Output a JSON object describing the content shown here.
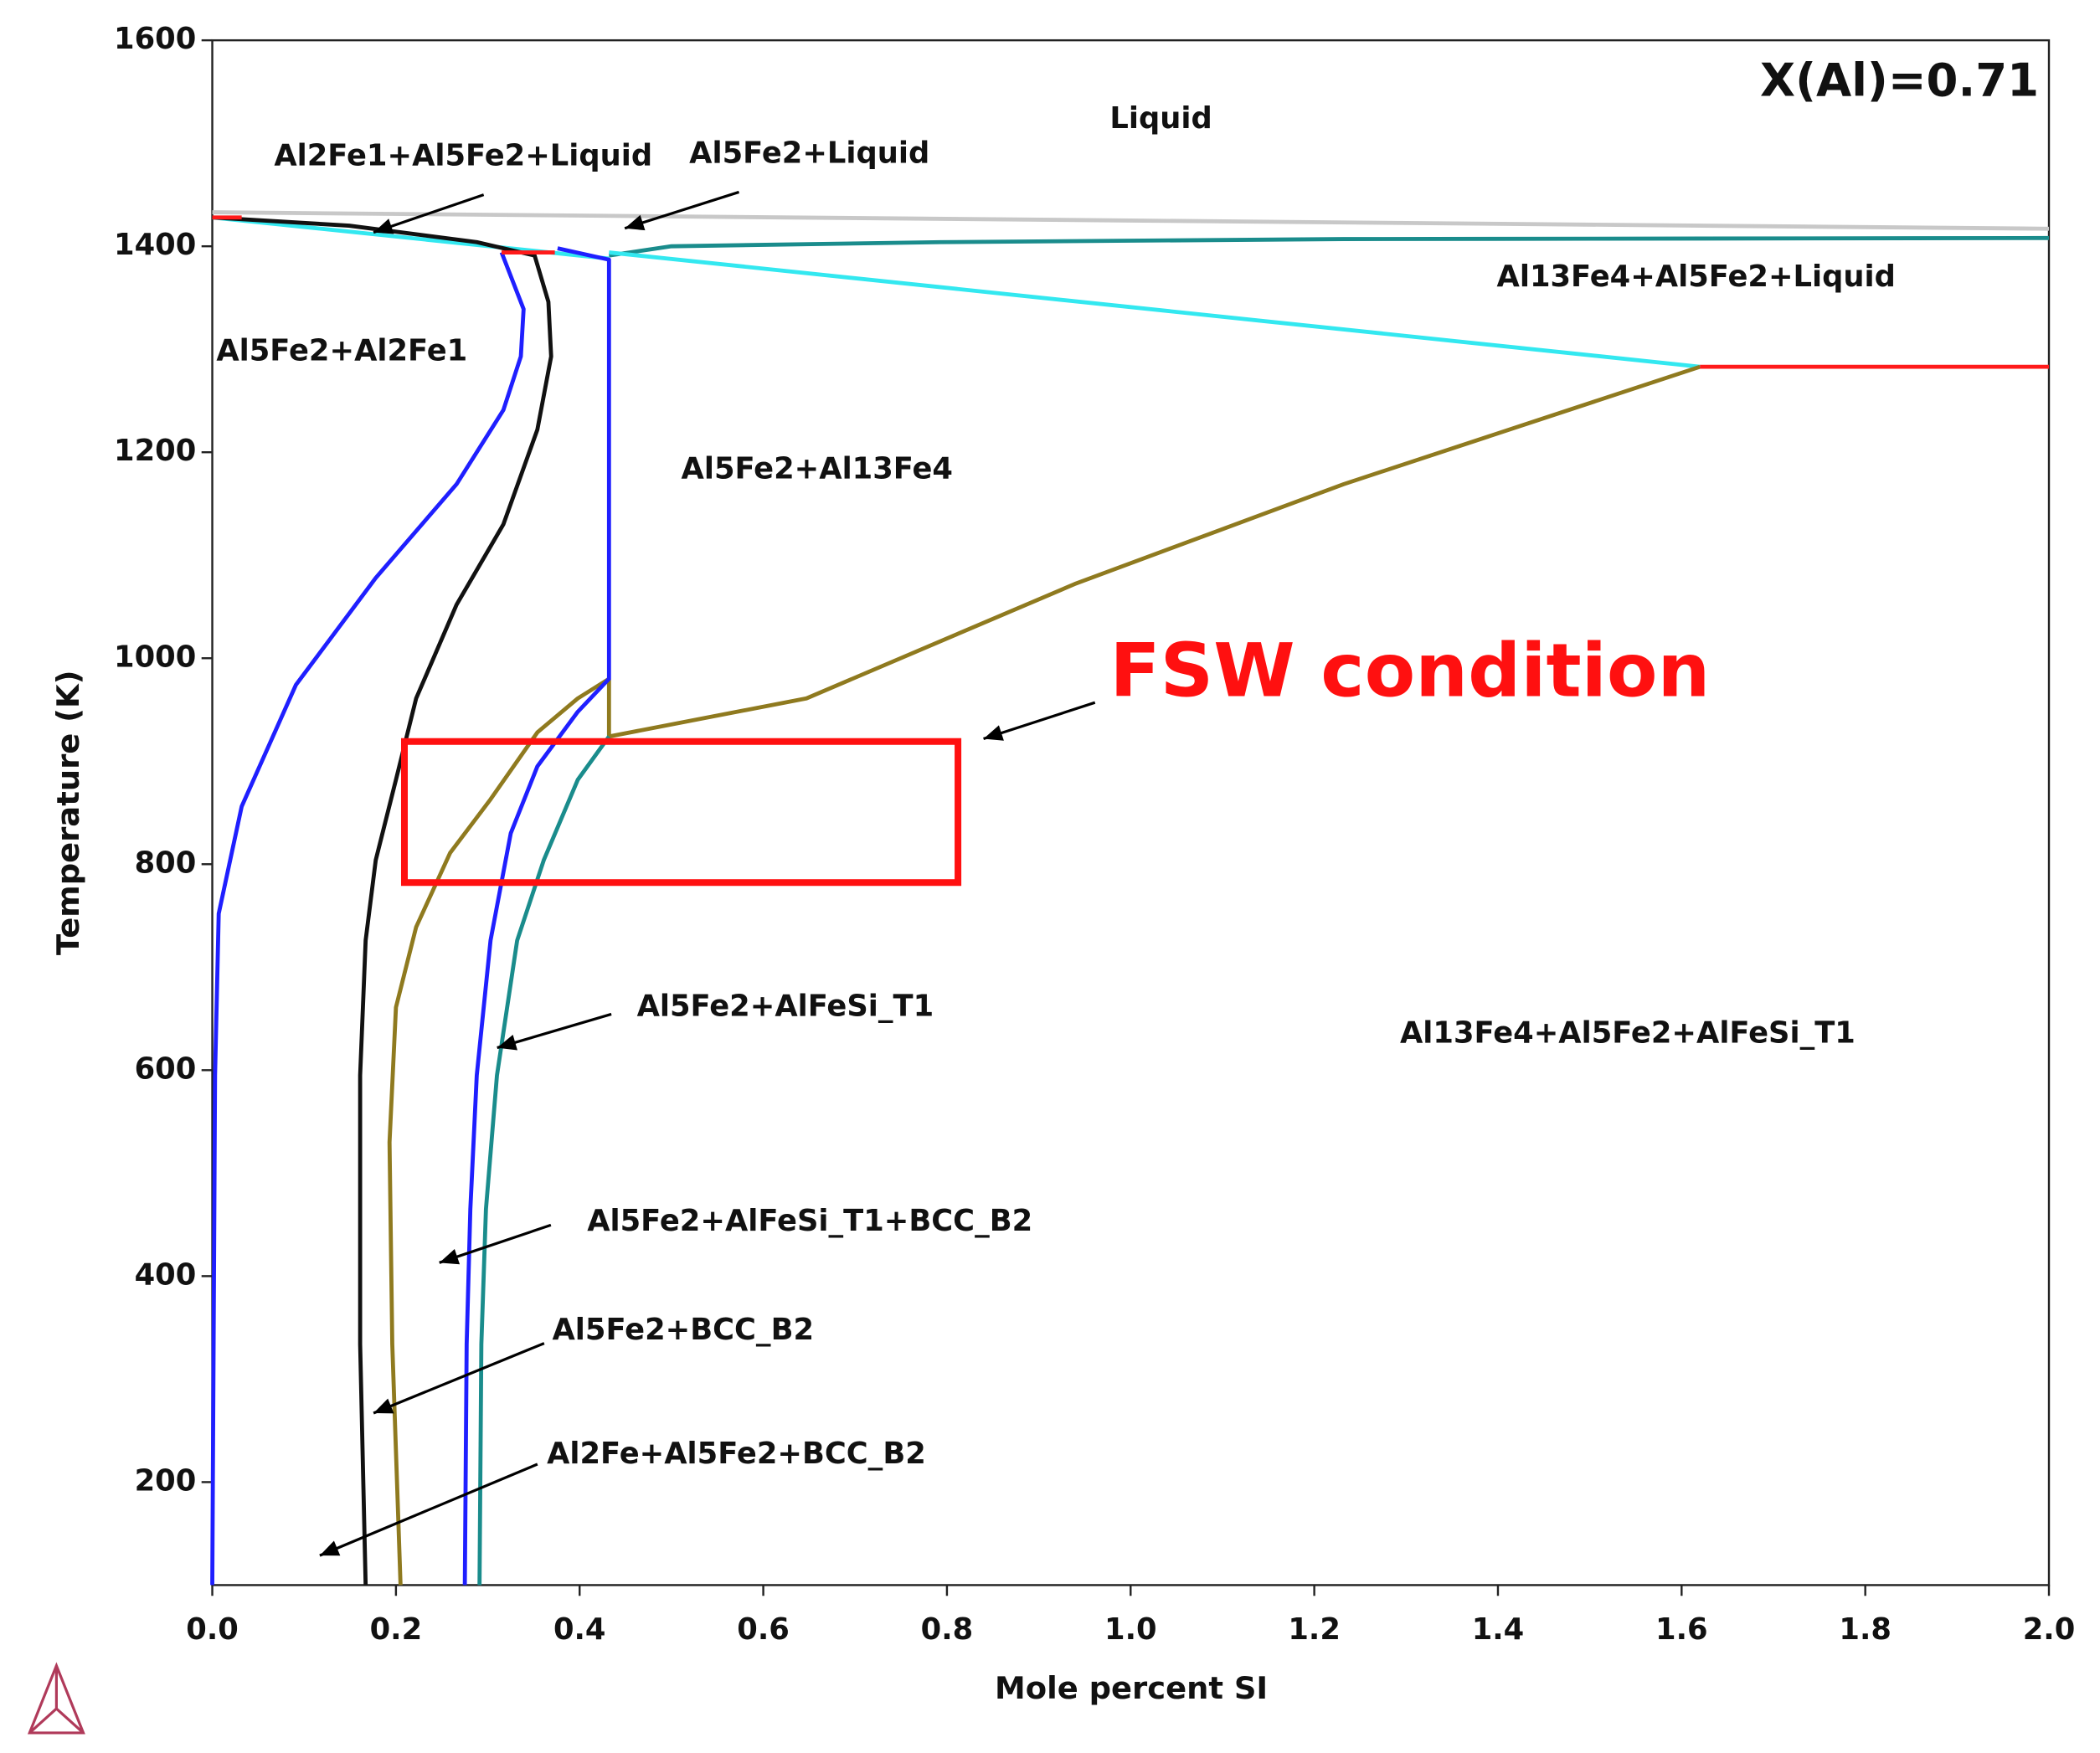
{
  "chart_data": {
    "type": "line",
    "xlabel": "Mole percent SI",
    "ylabel": "Temperature (K)",
    "xlim": [
      0,
      2
    ],
    "ylim": [
      100,
      1600
    ],
    "xticks": [
      {
        "value": 0,
        "label": "0.0"
      },
      {
        "value": 0.2,
        "label": "0.2"
      },
      {
        "value": 0.4,
        "label": "0.4"
      },
      {
        "value": 0.6,
        "label": "0.6"
      },
      {
        "value": 0.8,
        "label": "0.8"
      },
      {
        "value": 1,
        "label": "1.0"
      },
      {
        "value": 1.2,
        "label": "1.2"
      },
      {
        "value": 1.4,
        "label": "1.4"
      },
      {
        "value": 1.6,
        "label": "1.6"
      },
      {
        "value": 1.8,
        "label": "1.8"
      },
      {
        "value": 2,
        "label": "2.0"
      }
    ],
    "yticks": [
      200,
      400,
      600,
      800,
      1000,
      1200,
      1400,
      1600
    ],
    "annotations": [
      "X(Al)=0.71",
      "Liquid",
      "Al2Fe1+Al5Fe2+Liquid",
      "Al5Fe2+Liquid",
      "Al13Fe4+Al5Fe2+Liquid",
      "Al5Fe2+Al2Fe1",
      "Al5Fe2+Al13Fe4",
      "FSW condition",
      "Al5Fe2+AlFeSi_T1",
      "Al13Fe4+Al5Fe2+AlFeSi_T1",
      "Al5Fe2+AlFeSi_T1+BCC_B2",
      "Al5Fe2+BCC_B2",
      "Al2Fe+Al5Fe2+BCC_B2"
    ],
    "series": [
      {
        "color": "#c8c8c8",
        "x": [
          0,
          1,
          2
        ],
        "values": [
          1433,
          1425,
          1417
        ]
      },
      {
        "color": "#1a8c8c",
        "x": [
          0.432,
          0.5,
          0.793,
          1.232,
          2.0
        ],
        "values": [
          1391,
          1400,
          1404,
          1407,
          1408
        ]
      },
      {
        "color": "#33e8f0",
        "x": [
          0,
          0.432
        ],
        "values": [
          1428,
          1388
        ]
      },
      {
        "color": "#33e8f0",
        "x": [
          0.432,
          1.62
        ],
        "values": [
          1394,
          1283
        ]
      },
      {
        "color": "#1f1fff",
        "x": [
          0.315,
          0.339,
          0.336,
          0.317,
          0.266,
          0.178,
          0.091,
          0.032,
          0.007,
          0.003,
          0
        ],
        "values": [
          1394,
          1339,
          1293,
          1241,
          1169,
          1078,
          974,
          856,
          752,
          595,
          100
        ]
      },
      {
        "color": "#111111",
        "x": [
          0,
          0.149,
          0.288,
          0.351,
          0.366,
          0.369,
          0.354,
          0.317,
          0.266,
          0.222,
          0.2,
          0.178,
          0.167,
          0.161,
          0.161,
          0.167
        ],
        "values": [
          1428,
          1420,
          1404,
          1391,
          1346,
          1293,
          1222,
          1130,
          1052,
          961,
          882,
          804,
          726,
          595,
          334,
          100
        ]
      },
      {
        "color": "#8f7a1f",
        "x": [
          1.62,
          1.232,
          0.939,
          0.647,
          0.432,
          0.432
        ],
        "values": [
          1283,
          1169,
          1072,
          961,
          924,
          980
        ]
      },
      {
        "color": "#8f7a1f",
        "x": [
          0.432,
          0.398,
          0.354,
          0.303,
          0.259,
          0.222,
          0.2,
          0.193,
          0.196,
          0.205
        ],
        "values": [
          980,
          961,
          928,
          863,
          811,
          739,
          661,
          530,
          334,
          100
        ]
      },
      {
        "color": "#1a8c8c",
        "x": [
          0.432,
          0.398,
          0.361,
          0.332,
          0.31,
          0.298,
          0.293,
          0.291
        ],
        "values": [
          924,
          882,
          804,
          726,
          595,
          465,
          334,
          100
        ]
      },
      {
        "color": "#1f1fff",
        "x": [
          0.376,
          0.432,
          0.432,
          0.398,
          0.354,
          0.325,
          0.303,
          0.288,
          0.281,
          0.277,
          0.275
        ],
        "values": [
          1398,
          1387,
          980,
          948,
          895,
          830,
          726,
          595,
          465,
          334,
          100
        ]
      },
      {
        "color": "#ff1a1a",
        "x": [
          0,
          0.032
        ],
        "values": [
          1428,
          1428
        ]
      },
      {
        "color": "#ff1a1a",
        "x": [
          0.315,
          0.373
        ],
        "values": [
          1394,
          1394
        ]
      },
      {
        "color": "#ff1a1a",
        "x": [
          1.62,
          2.0
        ],
        "values": [
          1283,
          1283
        ]
      }
    ]
  }
}
